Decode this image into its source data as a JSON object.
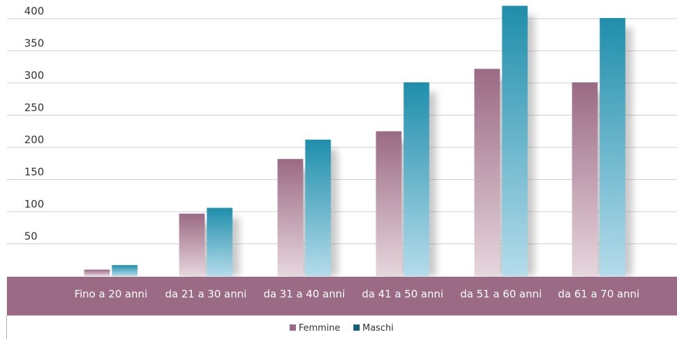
{
  "chart_data": {
    "type": "bar",
    "title": "",
    "xlabel": "",
    "ylabel": "",
    "categories": [
      "Fino a 20 anni",
      "da 21 a 30 anni",
      "da 31 a 40 anni",
      "da 41 a 50 anni",
      "da 51 a 60 anni",
      "da 61 a 70 anni"
    ],
    "series": [
      {
        "name": "Femmine",
        "values": [
          10,
          97,
          182,
          225,
          322,
          301
        ]
      },
      {
        "name": "Maschi",
        "values": [
          17,
          106,
          212,
          301,
          420,
          401
        ]
      }
    ],
    "yticks": [
      50,
      100,
      150,
      200,
      250,
      300,
      350,
      400
    ],
    "ylim": [
      0,
      420
    ],
    "grid": true,
    "legend_position": "bottom-center"
  },
  "colors": {
    "femmine": "#9b6a84",
    "maschi": "#1f8eab",
    "category_band": "#9b6a84",
    "legend_femmine": "#9b6a84",
    "legend_maschi": "#135f7a"
  }
}
